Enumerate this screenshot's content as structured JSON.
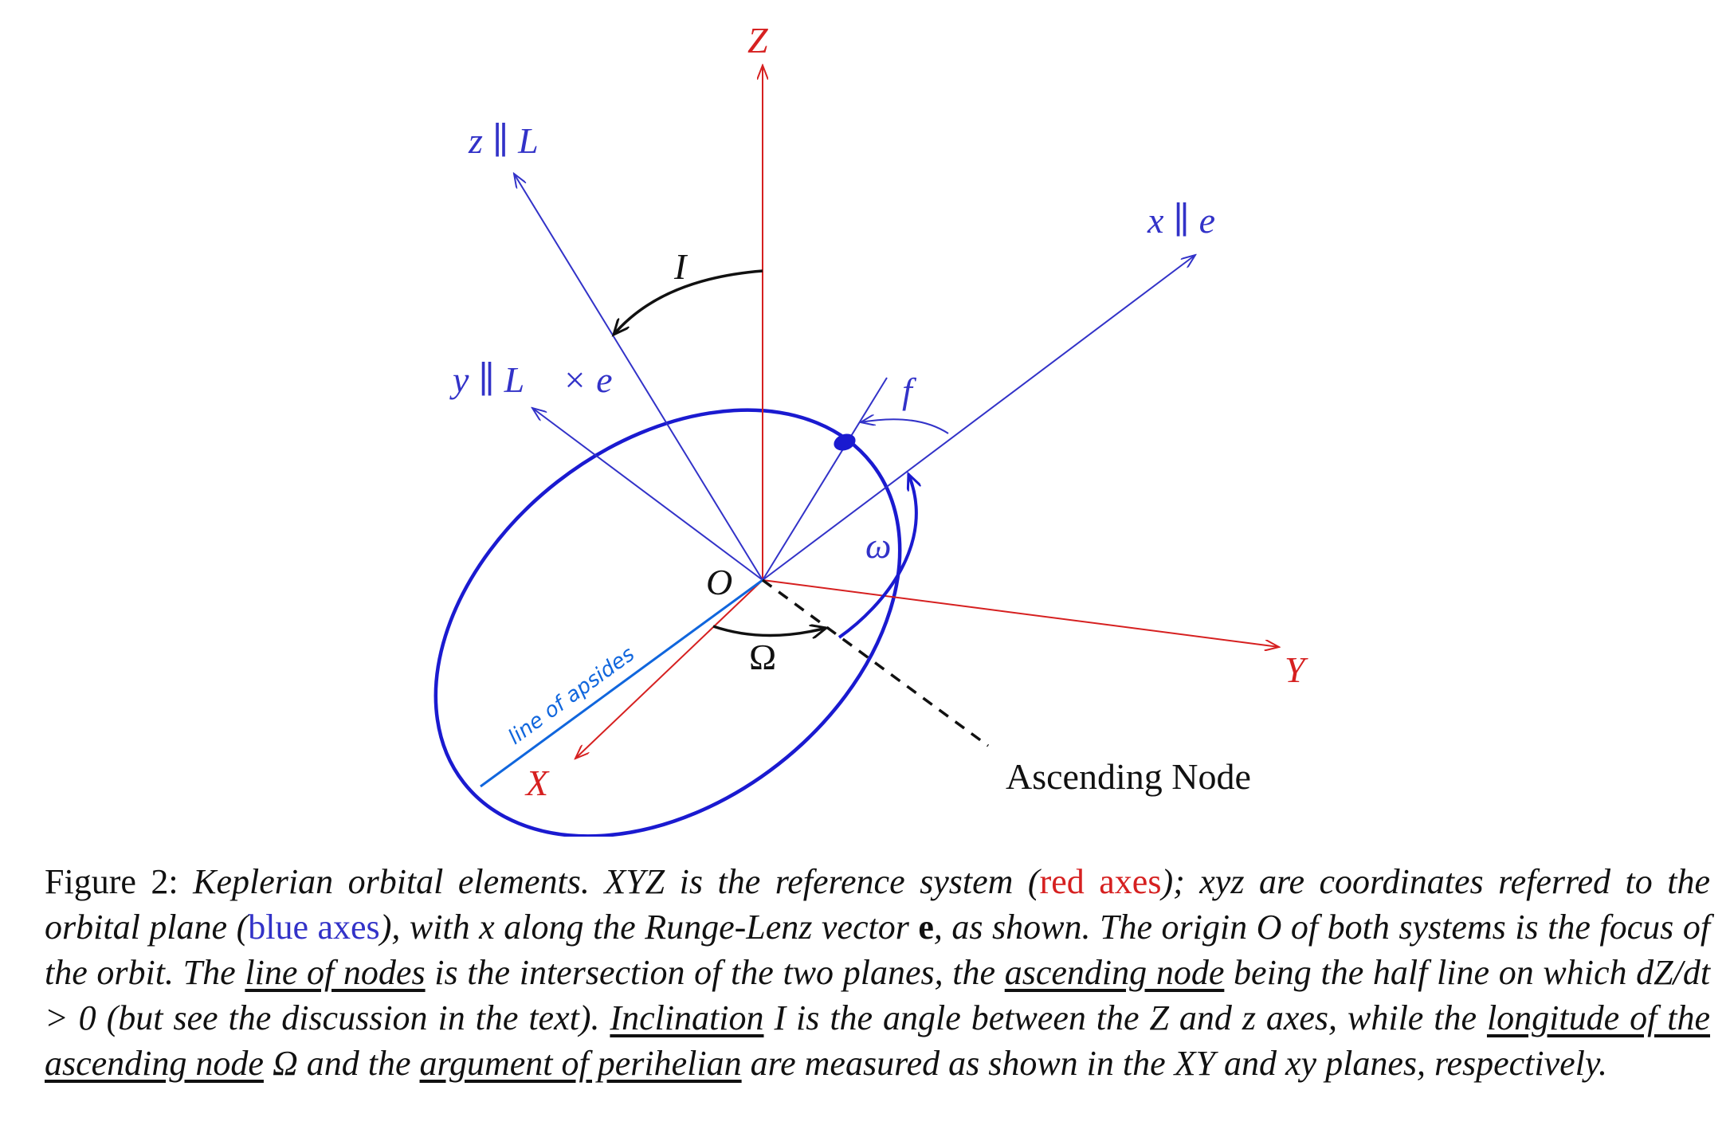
{
  "diagram": {
    "axes": {
      "Z": "Z",
      "Y": "Y",
      "X": "X",
      "z": "z ∥ L⃗",
      "y": "y ∥ L⃗ × e⃗",
      "x": "x ∥ e⃗"
    },
    "angles": {
      "inclination": "I",
      "true_anomaly": "f",
      "argument_of_perihelion": "ω",
      "longitude_of_node": "Ω"
    },
    "origin": "O",
    "ascending_node": "Ascending Node",
    "handwritten_note": "line of apsides",
    "colors": {
      "reference_axes": "#d62020",
      "orbital_axes": "#3232c8",
      "orbit": "#1a1ad0",
      "apsides_line": "#1066dd"
    }
  },
  "caption": {
    "figure_label": "Figure 2:",
    "s1": "Keplerian orbital elements.",
    "xyz_ref": "XYZ",
    "s2": "is the reference system (",
    "red_axes": "red axes",
    "s3": "); ",
    "xyz": "xyz",
    "s4": "are coordinates referred to the orbital plane (",
    "blue_axes": "blue axes",
    "s5": "), with",
    "x_sym": "x",
    "s6": "along the Runge-Lenz vector",
    "e_vec": "e",
    "s7": ", as shown. The origin",
    "o_sym": "O",
    "s8": "of both systems is the focus of the orbit. The",
    "line_of_nodes": "line of nodes",
    "s9": "is the intersection of the two planes, the",
    "ascending_node": "ascending node",
    "s10": "being the half line on which",
    "dzdt": "dZ/dt > 0",
    "s11": "(but see the discussion in the text).",
    "inclination": "Inclination",
    "s12": "I is the angle between the Z and z axes, while the",
    "longitude": "longitude of the ascending node",
    "s13": "Ω and the",
    "argument": "argument of perihelian",
    "s14": "are measured as shown in the",
    "xy_ref": "XY",
    "s15": "and",
    "xy": "xy",
    "s16": "planes, respectively."
  }
}
